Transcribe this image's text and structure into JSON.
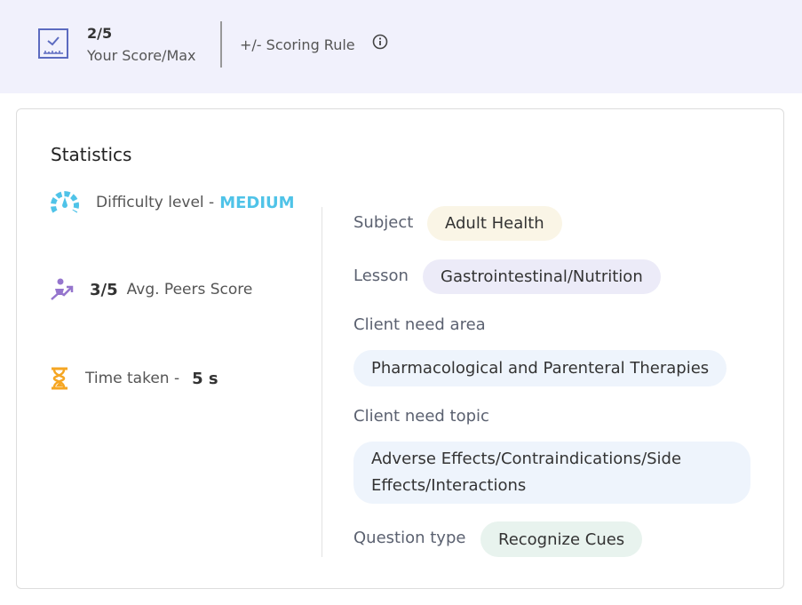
{
  "header": {
    "score": "2/5",
    "score_label": "Your Score/Max",
    "scoring_rule": "+/- Scoring Rule"
  },
  "stats": {
    "title": "Statistics",
    "difficulty_label": "Difficulty level -",
    "difficulty_value": "MEDIUM",
    "peers_score": "3/5",
    "peers_label": "Avg. Peers Score",
    "time_label": "Time taken -",
    "time_value": "5 s"
  },
  "details": {
    "subject_label": "Subject",
    "subject": "Adult Health",
    "lesson_label": "Lesson",
    "lesson": "Gastrointestinal/Nutrition",
    "need_area_label": "Client need area",
    "need_area": "Pharmacological and Parenteral Therapies",
    "need_topic_label": "Client need topic",
    "need_topic": "Adverse Effects/Contraindications/Side Effects/Interactions",
    "qtype_label": "Question type",
    "qtype": "Recognize Cues"
  },
  "colors": {
    "accent": "#4fc3e8",
    "score_icon": "#5c6bc0",
    "peers_icon": "#9575cd",
    "time_icon": "#f5a623",
    "chip_subject": "#faf5e6",
    "chip_lesson": "#ecebf8",
    "chip_need": "#eef4fc",
    "chip_qtype": "#e8f3ee"
  }
}
